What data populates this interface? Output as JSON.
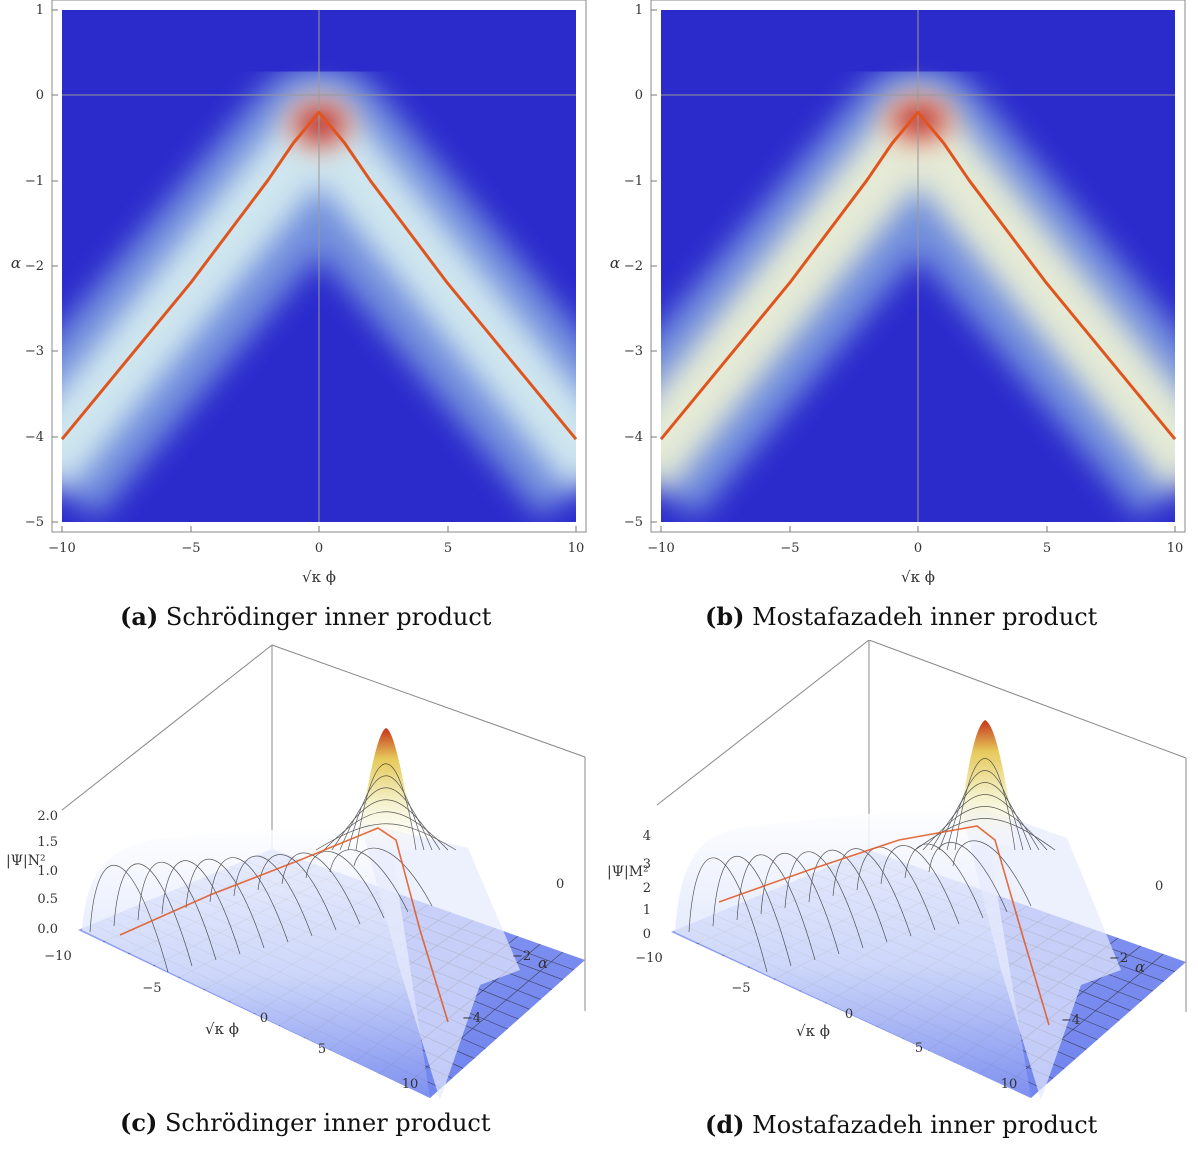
{
  "colors": {
    "background": "#2b2bcc",
    "ridge_light": "#cfe6ef",
    "peak": "#a8141e",
    "curve": "#e0551e",
    "surface": "#6f82ef",
    "surface_light": "#ffffff",
    "axis_line": "#9a9a9a"
  },
  "chart_data": [
    {
      "id": "a",
      "type": "heatmap",
      "xlabel": "√κ ϕ",
      "ylabel": "α",
      "xlim": [
        -10,
        10
      ],
      "ylim": [
        -5,
        1
      ],
      "x_ticks": [
        "−10",
        "−5",
        "0",
        "5",
        "10"
      ],
      "y_ticks": [
        "1",
        "0",
        "−1",
        "−2",
        "−3",
        "−4",
        "−5"
      ],
      "curve": {
        "x": [
          -10,
          -5,
          -2,
          -1,
          0,
          1,
          2,
          5,
          10
        ],
        "y": [
          -4.03,
          -2.2,
          -1.0,
          -0.56,
          -0.2,
          -0.56,
          -1.0,
          -2.2,
          -4.03
        ]
      },
      "peak": {
        "x": 0,
        "y": -0.4
      },
      "caption_tag": "(a)",
      "caption": "Schrödinger inner product"
    },
    {
      "id": "b",
      "type": "heatmap",
      "xlabel": "√κ ϕ",
      "ylabel": "α",
      "xlim": [
        -10,
        10
      ],
      "ylim": [
        -5,
        1
      ],
      "x_ticks": [
        "−10",
        "−5",
        "0",
        "5",
        "10"
      ],
      "y_ticks": [
        "1",
        "0",
        "−1",
        "−2",
        "−3",
        "−4",
        "−5"
      ],
      "curve": {
        "x": [
          -10,
          -5,
          -2,
          -1,
          0,
          1,
          2,
          5,
          10
        ],
        "y": [
          -4.03,
          -2.2,
          -1.0,
          -0.56,
          -0.2,
          -0.56,
          -1.0,
          -2.2,
          -4.03
        ]
      },
      "peak": {
        "x": 0,
        "y": -0.35
      },
      "caption_tag": "(b)",
      "caption": "Mostafazadeh inner product"
    },
    {
      "id": "c",
      "type": "surface",
      "xlabel": "√κ ϕ",
      "ylabel": "α",
      "zlabel": "|Ψ|N²",
      "x_ticks": [
        "−10",
        "−5",
        "0",
        "5",
        "10"
      ],
      "y_ticks": [
        "0",
        "−2",
        "−4"
      ],
      "z_ticks": [
        "2.0",
        "1.5",
        "1.0",
        "0.5",
        "0.0"
      ],
      "zlim": [
        0,
        2
      ],
      "caption_tag": "(c)",
      "caption": "Schrödinger inner product"
    },
    {
      "id": "d",
      "type": "surface",
      "xlabel": "√κ ϕ",
      "ylabel": "α",
      "zlabel": "|Ψ|M²",
      "x_ticks": [
        "−10",
        "−5",
        "0",
        "5",
        "10"
      ],
      "y_ticks": [
        "0",
        "−2",
        "−4"
      ],
      "z_ticks": [
        "4",
        "3",
        "2",
        "1",
        "0"
      ],
      "zlim": [
        0,
        4.5
      ],
      "caption_tag": "(d)",
      "caption": "Mostafazadeh inner product"
    }
  ]
}
